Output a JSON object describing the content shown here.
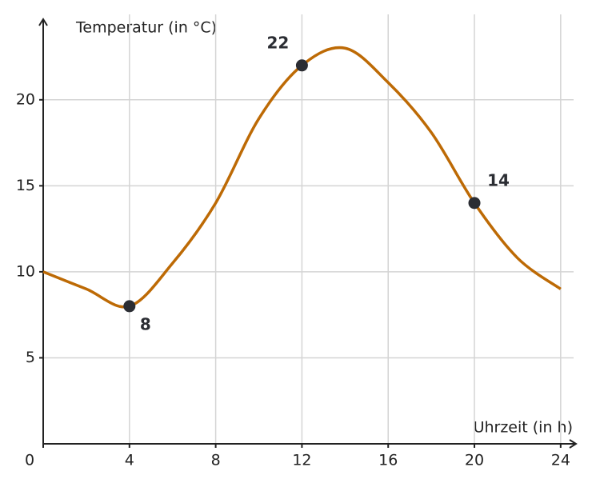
{
  "chart_data": {
    "type": "line",
    "y_label": "Temperatur (in °C)",
    "x_label": "Uhrzeit (in h)",
    "x": [
      0,
      2,
      4,
      6,
      8,
      10,
      12,
      14,
      16,
      18,
      20,
      22,
      24
    ],
    "series": [
      {
        "color": "#bd6a05",
        "values": [
          10,
          9,
          8,
          10.5,
          14,
          18.9,
          22,
          23,
          21,
          18.1,
          14,
          10.8,
          9
        ]
      }
    ],
    "highlights": {
      "color": "#2b2d33",
      "x": [
        4,
        12,
        20
      ],
      "values": [
        8,
        22,
        14
      ]
    },
    "xlim": [
      0,
      24.6
    ],
    "ylim": [
      0,
      24.5
    ],
    "xticks": [
      0,
      4,
      8,
      12,
      16,
      20,
      24
    ],
    "yticks": [
      5,
      10,
      15,
      20
    ],
    "grid": true
  }
}
